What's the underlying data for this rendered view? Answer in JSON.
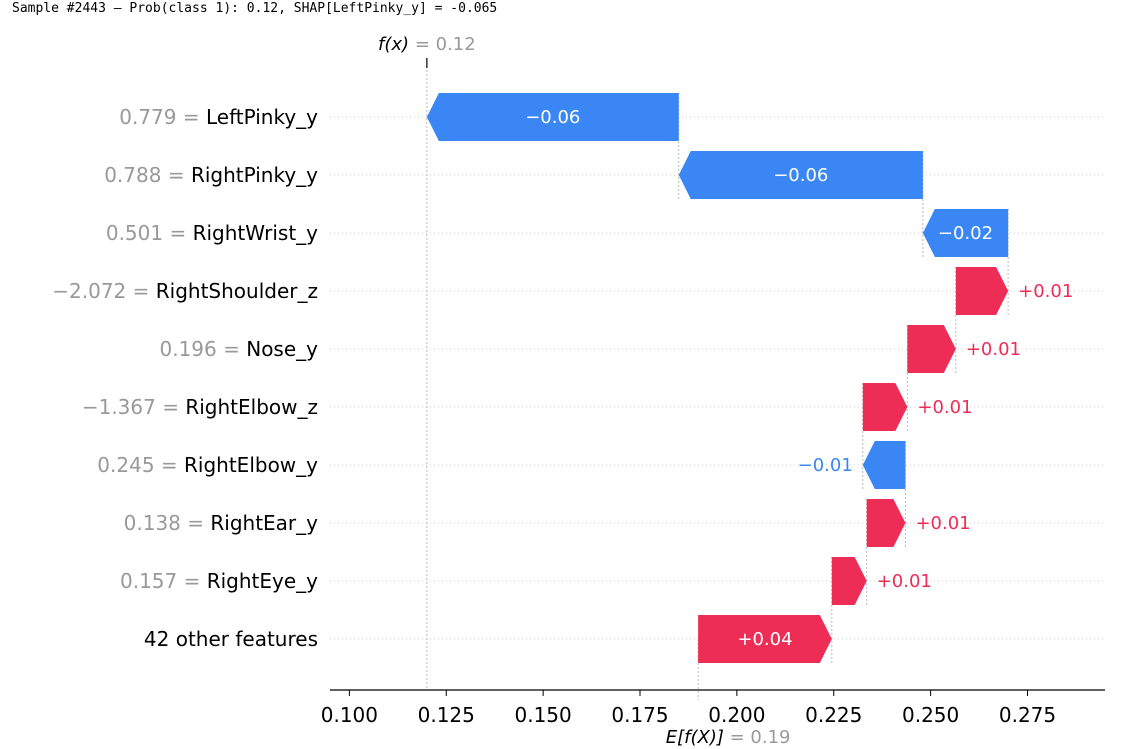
{
  "header": "Sample #2443 — Prob(class 1): 0.12, SHAP[LeftPinky_y] = -0.065",
  "chart_data": {
    "type": "waterfall",
    "base_value": 0.19,
    "fx_value": 0.12,
    "fx_label": "f(x)",
    "fx_value_text": " = 0.12",
    "base_label": "E[f(X)]",
    "base_value_text": " = 0.19",
    "xlim": [
      0.095,
      0.295
    ],
    "xticks": [
      "0.100",
      "0.125",
      "0.150",
      "0.175",
      "0.200",
      "0.225",
      "0.250",
      "0.275"
    ],
    "colors": {
      "negative": "#3b86f5",
      "positive": "#ee2d57",
      "value_gray": "#999999"
    },
    "features": [
      {
        "value": "0.779",
        "name": "LeftPinky_y",
        "start": 0.185,
        "end": 0.12,
        "label": "−0.06"
      },
      {
        "value": "0.788",
        "name": "RightPinky_y",
        "start": 0.248,
        "end": 0.185,
        "label": "−0.06"
      },
      {
        "value": "0.501",
        "name": "RightWrist_y",
        "start": 0.27,
        "end": 0.248,
        "label": "−0.02"
      },
      {
        "value": "−2.072",
        "name": "RightShoulder_z",
        "start": 0.2565,
        "end": 0.27,
        "label": "+0.01"
      },
      {
        "value": "0.196",
        "name": "Nose_y",
        "start": 0.244,
        "end": 0.2565,
        "label": "+0.01"
      },
      {
        "value": "−1.367",
        "name": "RightElbow_z",
        "start": 0.2325,
        "end": 0.244,
        "label": "+0.01"
      },
      {
        "value": "0.245",
        "name": "RightElbow_y",
        "start": 0.2435,
        "end": 0.2325,
        "label": "−0.01"
      },
      {
        "value": "0.138",
        "name": "RightEar_y",
        "start": 0.2335,
        "end": 0.2435,
        "label": "+0.01"
      },
      {
        "value": "0.157",
        "name": "RightEye_y",
        "start": 0.2245,
        "end": 0.2335,
        "label": "+0.01"
      },
      {
        "value": "",
        "name": "42 other features",
        "start": 0.19,
        "end": 0.2245,
        "label": "+0.04"
      }
    ]
  }
}
